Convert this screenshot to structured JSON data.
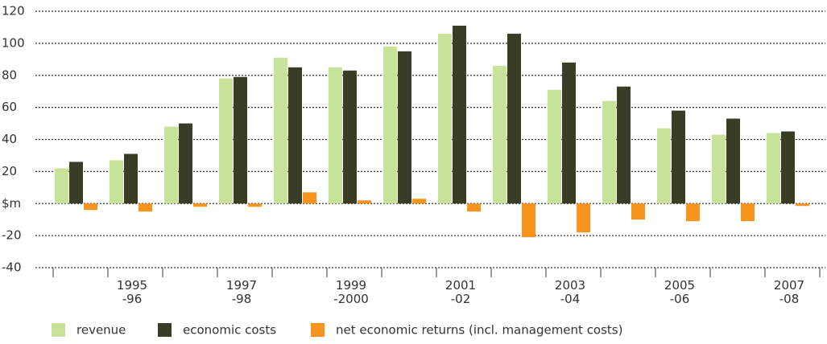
{
  "chart_data": {
    "type": "bar",
    "categories": [
      null,
      "1995\n-96",
      null,
      "1997\n-98",
      null,
      "1999\n-2000",
      null,
      "2001\n-02",
      null,
      "2003\n-04",
      null,
      "2005\n-06",
      null,
      "2007\n-08"
    ],
    "series": [
      {
        "name": "revenue",
        "color": "#c9e29a",
        "values": [
          22,
          27,
          48,
          78,
          91,
          85,
          98,
          106,
          86,
          71,
          64,
          47,
          43,
          44
        ]
      },
      {
        "name": "economic costs",
        "color": "#3a3d25",
        "values": [
          26,
          31,
          50,
          79,
          85,
          83,
          95,
          111,
          106,
          88,
          73,
          58,
          53,
          45
        ]
      },
      {
        "name": "net economic returns (incl. management costs)",
        "color": "#f7941d",
        "values": [
          -4,
          -5,
          -2,
          -2,
          7,
          2,
          3,
          -5,
          -21,
          -18,
          -10,
          -11,
          -11,
          -1.5
        ]
      }
    ],
    "ylim": [
      -40,
      120
    ],
    "yticks": [
      -40,
      -20,
      {
        "value": 0,
        "label": "$m"
      },
      20,
      40,
      60,
      80,
      100,
      120
    ],
    "grid": true
  }
}
